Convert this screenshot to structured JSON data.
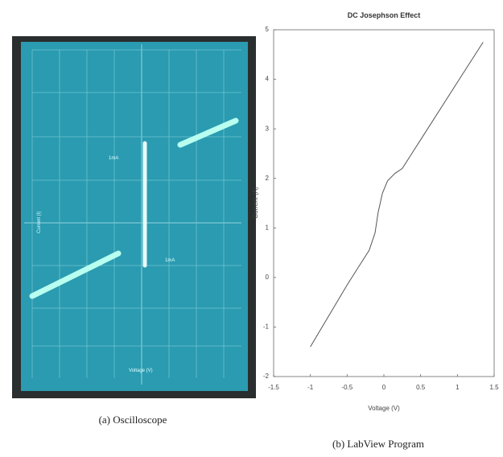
{
  "oscilloscope": {
    "y_label": "Current (I)",
    "x_label": "Voltage (V)",
    "marker_top": "1mA",
    "marker_bottom": "1mA"
  },
  "captions": {
    "a": "(a) Oscilloscope",
    "b": "(b) LabView Program"
  },
  "chart_data": {
    "type": "line",
    "title": "DC Josephson Effect",
    "x_label": "Voltage (V)",
    "y_label": "Current (A)",
    "x": [
      -1,
      -0.5,
      -0.35,
      -0.2,
      -0.12,
      -0.08,
      -0.02,
      0.05,
      0.15,
      0.25,
      0.5,
      1,
      1.35
    ],
    "values": [
      -1.4,
      -0.15,
      0.2,
      0.55,
      0.9,
      1.3,
      1.7,
      1.95,
      2.1,
      2.2,
      2.78,
      3.94,
      4.75
    ],
    "color": "#555555",
    "xlim": [
      -1.5,
      1.5
    ],
    "xticks": [
      -1.5,
      -1,
      -0.5,
      0,
      0.5,
      1,
      1.5
    ],
    "ylim": [
      -2,
      5
    ],
    "yticks": [
      -2,
      -1,
      0,
      1,
      2,
      3,
      4,
      5
    ]
  }
}
